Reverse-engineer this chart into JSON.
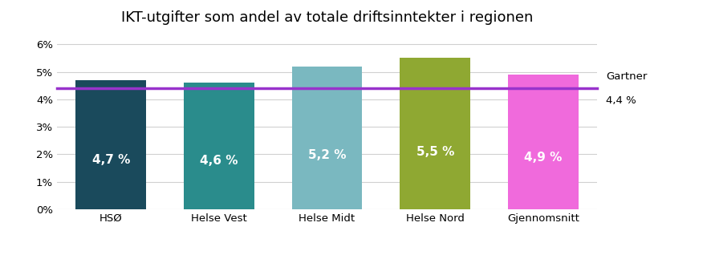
{
  "title": "IKT-utgifter som andel av totale driftsinntekter i regionen",
  "categories": [
    "HSØ",
    "Helse Vest",
    "Helse Midt",
    "Helse Nord",
    "Gjennomsnitt"
  ],
  "values": [
    0.047,
    0.046,
    0.052,
    0.055,
    0.049
  ],
  "bar_colors": [
    "#1a4a5c",
    "#2a8c8c",
    "#7ab8c0",
    "#8fa832",
    "#f06adc"
  ],
  "bar_labels": [
    "4,7 %",
    "4,6 %",
    "5,2 %",
    "5,5 %",
    "4,9 %"
  ],
  "label_colors": [
    "white",
    "white",
    "white",
    "white",
    "white"
  ],
  "gartner_value": 0.044,
  "gartner_color": "#9933cc",
  "gartner_label": "Gartner",
  "gartner_sublabel": "4,4 %",
  "ylim": [
    0,
    0.065
  ],
  "yticks": [
    0,
    0.01,
    0.02,
    0.03,
    0.04,
    0.05,
    0.06
  ],
  "ytick_labels": [
    "0%",
    "1%",
    "2%",
    "3%",
    "4%",
    "5%",
    "6%"
  ],
  "background_color": "#ffffff",
  "title_fontsize": 13,
  "tick_fontsize": 9.5,
  "bar_label_fontsize": 11
}
